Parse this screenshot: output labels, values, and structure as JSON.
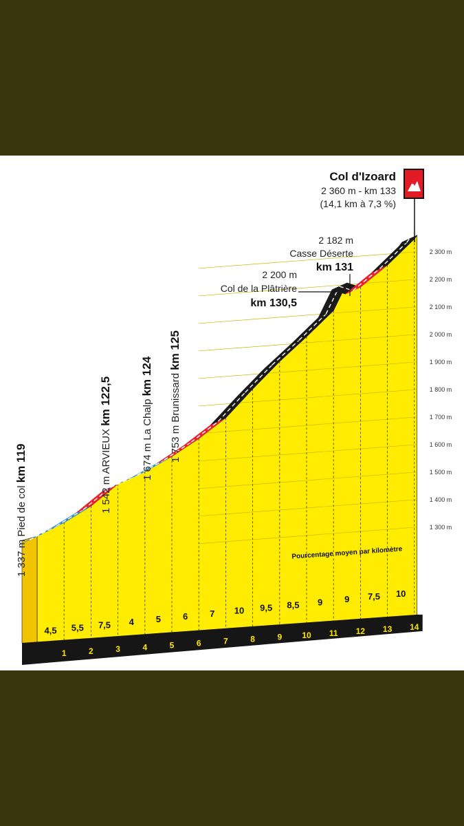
{
  "chart_data": {
    "type": "area",
    "subtype": "climb-elevation-profile",
    "title": "Col d'Izoard",
    "summit_line_1": "2 360 m - km 133",
    "summit_line_2": "(14,1 km à 7,3 %)",
    "yaxis": {
      "ticks": [
        "1 300 m",
        "1 400 m",
        "1 500 m",
        "1 600 m",
        "1 700 m",
        "1 800 m",
        "1 900 m",
        "2 000 m",
        "2 100 m",
        "2 200 m",
        "2 300 m"
      ],
      "tick_values": [
        1300,
        1400,
        1500,
        1600,
        1700,
        1800,
        1900,
        2000,
        2100,
        2200,
        2300
      ],
      "range": [
        1337,
        2360
      ]
    },
    "xaxis": {
      "ticks": [
        "1",
        "2",
        "3",
        "4",
        "5",
        "6",
        "7",
        "8",
        "9",
        "10",
        "11",
        "12",
        "13",
        "14"
      ],
      "range_km": [
        0,
        14.1
      ]
    },
    "profile": {
      "km": [
        0,
        1,
        2,
        3,
        4,
        5,
        6,
        7,
        8,
        9,
        10,
        11,
        11.5,
        12,
        13,
        14,
        14.1
      ],
      "elevation_m": [
        1337,
        1382,
        1437,
        1512,
        1552,
        1602,
        1662,
        1732,
        1832,
        1927,
        2012,
        2102,
        2200,
        2182,
        2257,
        2347,
        2360
      ]
    },
    "gradients": {
      "label": "Pourcentage moyen par kilomètre",
      "values": [
        "4,5",
        "5,5",
        "7,5",
        "4",
        "5",
        "6",
        "7",
        "10",
        "9,5",
        "8,5",
        "9",
        "9",
        "7,5",
        "10"
      ]
    },
    "gradient_colors": {
      "easy": "#2f8fd8",
      "medium": "#e8232f",
      "hard": "#1a1a1a",
      "fill": "#ffec00"
    },
    "waypoints": [
      {
        "elevation": "1 337 m",
        "name": "Pied de col",
        "km": "km 119"
      },
      {
        "elevation": "1 542 m",
        "name": "ARVIEUX",
        "km": "km 122,5"
      },
      {
        "elevation": "1 674 m",
        "name": "La Chalp",
        "km": "km 124"
      },
      {
        "elevation": "1 753 m",
        "name": "Brunissard",
        "km": "km 125"
      },
      {
        "elevation": "2 200 m",
        "name": "Col de la Plâtrière",
        "km": "km 130,5"
      },
      {
        "elevation": "2 182 m",
        "name": "Casse Déserte",
        "km": "km 131"
      }
    ]
  }
}
